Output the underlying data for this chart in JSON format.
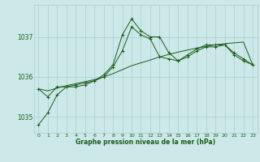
{
  "xlabel": "Graphe pression niveau de la mer (hPa)",
  "bg_color": "#cce8e8",
  "grid_color": "#aad0d0",
  "line_color": "#1a5c1a",
  "x_values": [
    0,
    1,
    2,
    3,
    4,
    5,
    6,
    7,
    8,
    9,
    10,
    11,
    12,
    13,
    14,
    15,
    16,
    17,
    18,
    19,
    20,
    21,
    22,
    23
  ],
  "series1": [
    1034.8,
    1035.1,
    1035.55,
    1035.75,
    1035.8,
    1035.85,
    1035.9,
    1036.05,
    1036.3,
    1037.05,
    1037.45,
    1037.15,
    1037.0,
    1037.0,
    1036.6,
    1036.4,
    1036.55,
    1036.7,
    1036.8,
    1036.8,
    1036.8,
    1036.55,
    1036.4,
    1036.3
  ],
  "series2": [
    1035.7,
    1035.5,
    1035.75,
    1035.75,
    1035.75,
    1035.8,
    1035.9,
    1036.0,
    1036.25,
    1036.65,
    1037.25,
    1037.05,
    1036.95,
    1036.5,
    1036.45,
    1036.4,
    1036.5,
    1036.65,
    1036.75,
    1036.75,
    1036.8,
    1036.6,
    1036.45,
    1036.3
  ],
  "series3": [
    1035.7,
    1035.65,
    1035.72,
    1035.78,
    1035.83,
    1035.88,
    1035.93,
    1036.0,
    1036.08,
    1036.18,
    1036.28,
    1036.35,
    1036.42,
    1036.5,
    1036.56,
    1036.62,
    1036.67,
    1036.72,
    1036.76,
    1036.8,
    1036.83,
    1036.85,
    1036.87,
    1036.3
  ],
  "ylim": [
    1034.6,
    1037.8
  ],
  "yticks": [
    1035,
    1036,
    1037
  ],
  "xticks": [
    0,
    1,
    2,
    3,
    4,
    5,
    6,
    7,
    8,
    9,
    10,
    11,
    12,
    13,
    14,
    15,
    16,
    17,
    18,
    19,
    20,
    21,
    22,
    23
  ]
}
